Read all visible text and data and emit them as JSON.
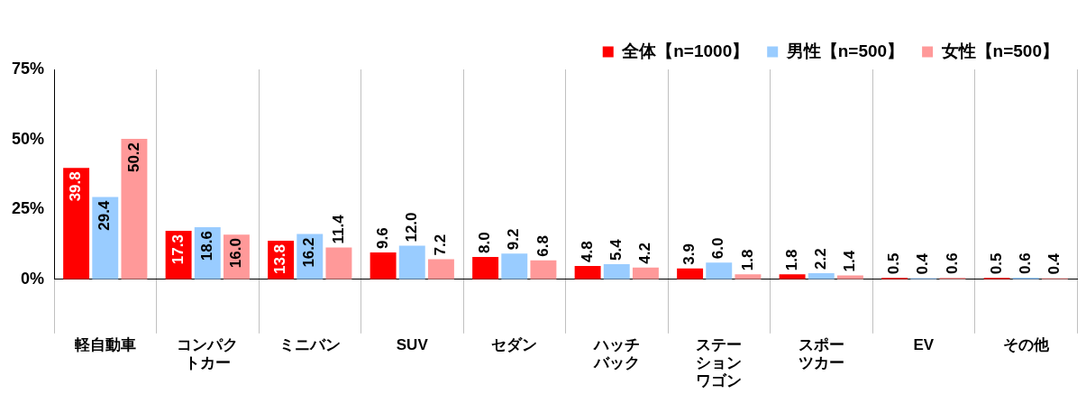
{
  "chart_data": {
    "type": "bar",
    "categories": [
      "軽自動車",
      "コンパクトカー",
      "ミニバン",
      "SUV",
      "セダン",
      "ハッチバック",
      "ステーションワゴン",
      "スポーツカー",
      "EV",
      "その他"
    ],
    "series": [
      {
        "name": "全体【n=1000】",
        "color": "#ff0000",
        "values": [
          39.8,
          17.3,
          13.8,
          9.6,
          8.0,
          4.8,
          3.9,
          1.8,
          0.5,
          0.5
        ],
        "value_labels": [
          "39.8",
          "17.3",
          "13.8",
          "9.6",
          "8.0",
          "4.8",
          "3.9",
          "1.8",
          "0.5",
          "0.5"
        ]
      },
      {
        "name": "男性【n=500】",
        "color": "#99ccff",
        "values": [
          29.4,
          18.6,
          16.2,
          12.0,
          9.2,
          5.4,
          6.0,
          2.2,
          0.4,
          0.6
        ],
        "value_labels": [
          "29.4",
          "18.6",
          "16.2",
          "12.0",
          "9.2",
          "5.4",
          "6.0",
          "2.2",
          "0.4",
          "0.6"
        ]
      },
      {
        "name": "女性【n=500】",
        "color": "#ff9999",
        "values": [
          50.2,
          16.0,
          11.4,
          7.2,
          6.8,
          4.2,
          1.8,
          1.4,
          0.6,
          0.4
        ],
        "value_labels": [
          "50.2",
          "16.0",
          "11.4",
          "7.2",
          "6.8",
          "4.2",
          "1.8",
          "1.4",
          "0.6",
          "0.4"
        ]
      }
    ],
    "ylim": [
      0,
      75
    ],
    "yticks": [
      {
        "value": 0,
        "label": "0%"
      },
      {
        "value": 25,
        "label": "25%"
      },
      {
        "value": 50,
        "label": "50%"
      },
      {
        "value": 75,
        "label": "75%"
      }
    ],
    "grid": "x",
    "legend": "top right"
  }
}
